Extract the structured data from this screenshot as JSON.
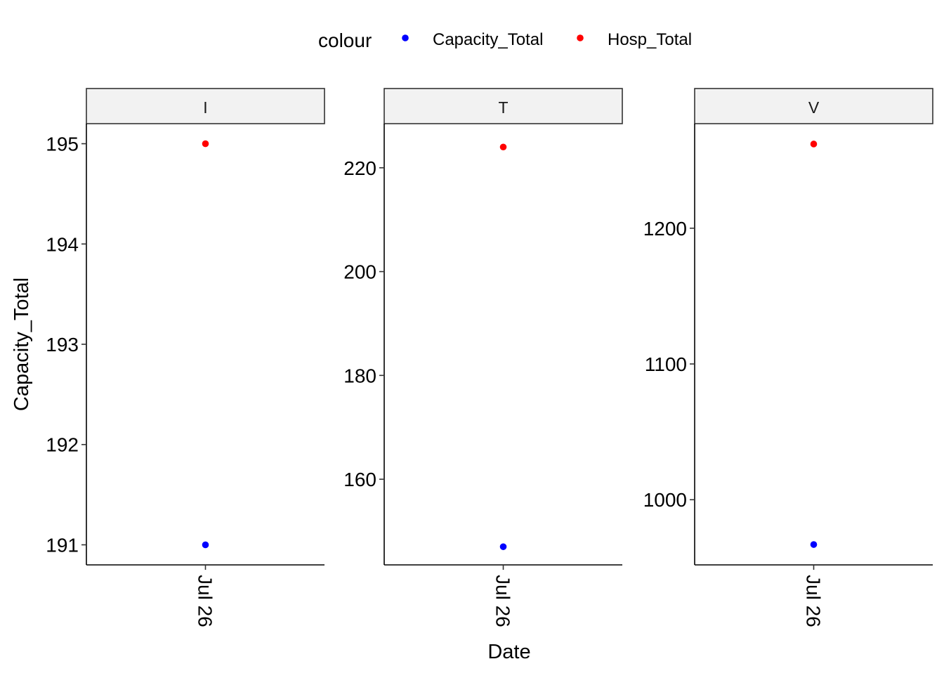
{
  "chart_data": {
    "type": "scatter",
    "xlabel": "Date",
    "ylabel": "Capacity_Total",
    "legend": {
      "title": "colour",
      "placement": "top",
      "entries": [
        {
          "name": "Capacity_Total",
          "color": "#0000ff"
        },
        {
          "name": "Hosp_Total",
          "color": "#ff0000"
        }
      ]
    },
    "x_tick_labels": [
      "Jul 26"
    ],
    "grid": false,
    "facets": [
      {
        "title": "I",
        "x": "Jul 26",
        "ylim": [
          190.8,
          195.2
        ],
        "yticks": [
          191,
          192,
          193,
          194,
          195
        ],
        "series": [
          {
            "name": "Capacity_Total",
            "values": [
              191
            ]
          },
          {
            "name": "Hosp_Total",
            "values": [
              195
            ]
          }
        ]
      },
      {
        "title": "T",
        "x": "Jul 26",
        "ylim": [
          143.5,
          228.5
        ],
        "yticks": [
          160,
          180,
          200,
          220
        ],
        "series": [
          {
            "name": "Capacity_Total",
            "values": [
              147
            ]
          },
          {
            "name": "Hosp_Total",
            "values": [
              224
            ]
          }
        ]
      },
      {
        "title": "V",
        "x": "Jul 26",
        "ylim": [
          952,
          1277
        ],
        "yticks": [
          1000,
          1100,
          1200
        ],
        "series": [
          {
            "name": "Capacity_Total",
            "values": [
              967
            ]
          },
          {
            "name": "Hosp_Total",
            "values": [
              1262
            ]
          }
        ]
      }
    ]
  }
}
